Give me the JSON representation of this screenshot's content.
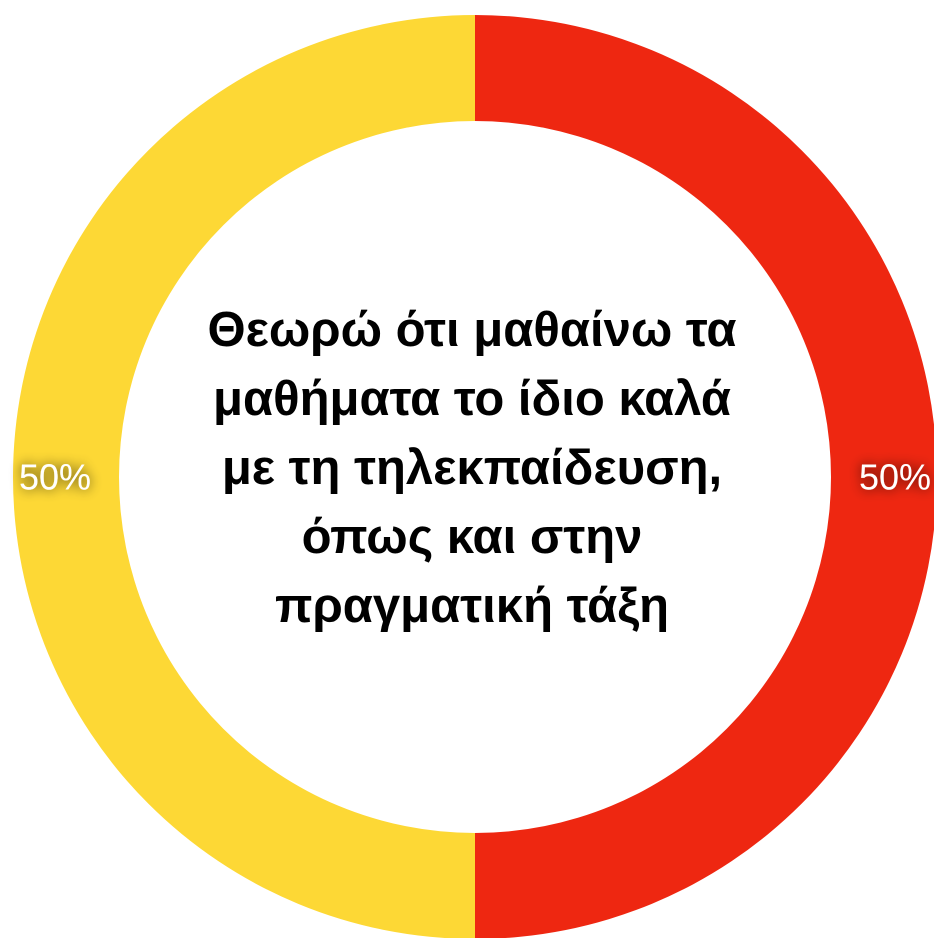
{
  "chart_data": {
    "type": "pie",
    "donut": true,
    "title": "Θεωρώ ότι μαθαίνω τα μαθήματα το ίδιο καλά με τη τηλεκπαίδευση, όπως και στην πραγματική τάξη",
    "slices": [
      {
        "value": 50,
        "label": "50%",
        "color": "#EE2711"
      },
      {
        "value": 50,
        "label": "50%",
        "color": "#FDD835"
      }
    ],
    "start": "top",
    "direction": "clockwise"
  }
}
